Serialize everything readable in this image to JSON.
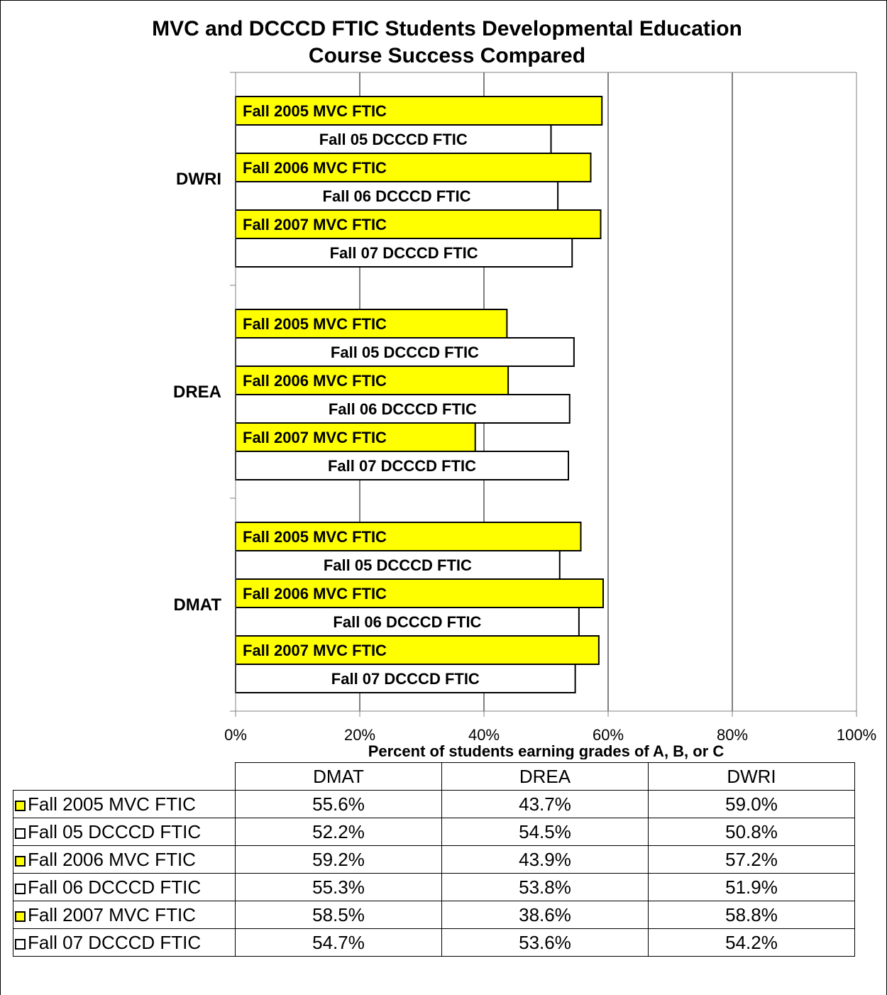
{
  "colors": {
    "mvc": "#ffff00",
    "dcccd": "#ffffff",
    "stroke": "#000000",
    "grid": "#000000"
  },
  "chart_data": {
    "type": "bar",
    "orientation": "horizontal",
    "title": "MVC and DCCCD FTIC Students Developmental Education Course Success Compared",
    "title_lines": [
      "MVC and DCCCD FTIC Students Developmental Education",
      "Course Success Compared"
    ],
    "xlabel": "Percent of students earning grades of A, B, or C",
    "categories": [
      "DMAT",
      "DREA",
      "DWRI"
    ],
    "x_ticks": [
      "0%",
      "20%",
      "40%",
      "60%",
      "80%",
      "100%"
    ],
    "xlim": [
      0,
      100
    ],
    "grid": true,
    "series": [
      {
        "name": "Fall 2005 MVC FTIC",
        "values": [
          55.6,
          43.7,
          59.0
        ],
        "value_labels": [
          "55.6%",
          "43.7%",
          "59.0%"
        ],
        "color": "#ffff00"
      },
      {
        "name": "Fall 05 DCCCD FTIC",
        "values": [
          52.2,
          54.5,
          50.8
        ],
        "value_labels": [
          "52.2%",
          "54.5%",
          "50.8%"
        ],
        "color": "#ffffff"
      },
      {
        "name": "Fall 2006 MVC FTIC",
        "values": [
          59.2,
          43.9,
          57.2
        ],
        "value_labels": [
          "59.2%",
          "43.9%",
          "57.2%"
        ],
        "color": "#ffff00"
      },
      {
        "name": "Fall 06 DCCCD FTIC",
        "values": [
          55.3,
          53.8,
          51.9
        ],
        "value_labels": [
          "55.3%",
          "53.8%",
          "51.9%"
        ],
        "color": "#ffffff"
      },
      {
        "name": "Fall 2007 MVC FTIC",
        "values": [
          58.5,
          38.6,
          58.8
        ],
        "value_labels": [
          "58.5%",
          "38.6%",
          "58.8%"
        ],
        "color": "#ffff00"
      },
      {
        "name": "Fall 07 DCCCD FTIC",
        "values": [
          54.7,
          53.6,
          54.2
        ],
        "value_labels": [
          "54.7%",
          "53.6%",
          "54.2%"
        ],
        "color": "#ffffff"
      }
    ]
  }
}
